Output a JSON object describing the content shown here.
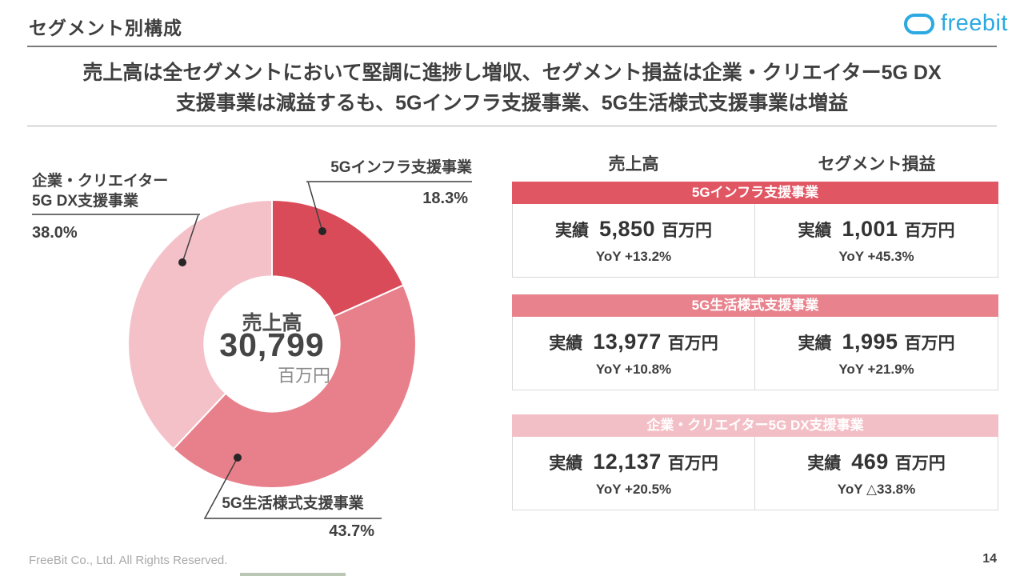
{
  "header": {
    "title": "セグメント別構成",
    "logo_text": "freebit",
    "brand_color": "#2BA9E0"
  },
  "headline": {
    "line1": "売上高は全セグメントにおいて堅調に進捗し増収、セグメント損益は企業・クリエイター5G DX",
    "line2": "支援事業は減益するも、5Gインフラ支援事業、5G生活様式支援事業は増益"
  },
  "chart_data": {
    "type": "pie",
    "subtype": "donut",
    "direction": "clockwise",
    "start_angle_deg": 0,
    "donut_hole_ratio": 0.47,
    "center": {
      "label": "売上高",
      "value": "30,799",
      "unit": "百万円"
    },
    "slices": [
      {
        "label": "5Gインフラ支援事業",
        "value_pct": 18.3,
        "display": "18.3%",
        "color": "#DA4B59"
      },
      {
        "label": "5G生活様式支援事業",
        "value_pct": 43.7,
        "display": "43.7%",
        "color": "#E8808B"
      },
      {
        "label": "企業・クリエイター5G DX支援事業",
        "value_pct": 38.0,
        "display": "38.0%",
        "color": "#F4C1C9"
      }
    ],
    "annotations": {
      "infra": {
        "label": "5Gインフラ支援事業",
        "pct": "18.3%"
      },
      "dx": {
        "label_line1": "企業・クリエイター",
        "label_line2": "5G DX支援事業",
        "pct": "38.0%"
      },
      "lifestyle": {
        "label": "5G生活様式支援事業",
        "pct": "43.7%"
      }
    }
  },
  "tables": {
    "col_headers": {
      "revenue": "売上高",
      "profit": "セグメント損益"
    },
    "rows": [
      {
        "name": "5Gインフラ支援事業",
        "header_bg": "#E15663",
        "revenue": {
          "actual_label": "実績",
          "value": "5,850",
          "unit": "百万円",
          "yoy": "YoY +13.2%"
        },
        "profit": {
          "actual_label": "実績",
          "value": "1,001",
          "unit": "百万円",
          "yoy": "YoY +45.3%"
        }
      },
      {
        "name": "5G生活様式支援事業",
        "header_bg": "#E8838E",
        "revenue": {
          "actual_label": "実績",
          "value": "13,977",
          "unit": "百万円",
          "yoy": "YoY +10.8%"
        },
        "profit": {
          "actual_label": "実績",
          "value": "1,995",
          "unit": "百万円",
          "yoy": "YoY +21.9%"
        }
      },
      {
        "name": "企業・クリエイター5G DX支援事業",
        "header_bg": "#F3BFC6",
        "revenue": {
          "actual_label": "実績",
          "value": "12,137",
          "unit": "百万円",
          "yoy": "YoY +20.5%"
        },
        "profit": {
          "actual_label": "実績",
          "value": "469",
          "unit": "百万円",
          "yoy": "YoY △33.8%"
        }
      }
    ]
  },
  "footer": {
    "copyright": "FreeBit Co., Ltd. All Rights Reserved.",
    "page_number": "14"
  }
}
